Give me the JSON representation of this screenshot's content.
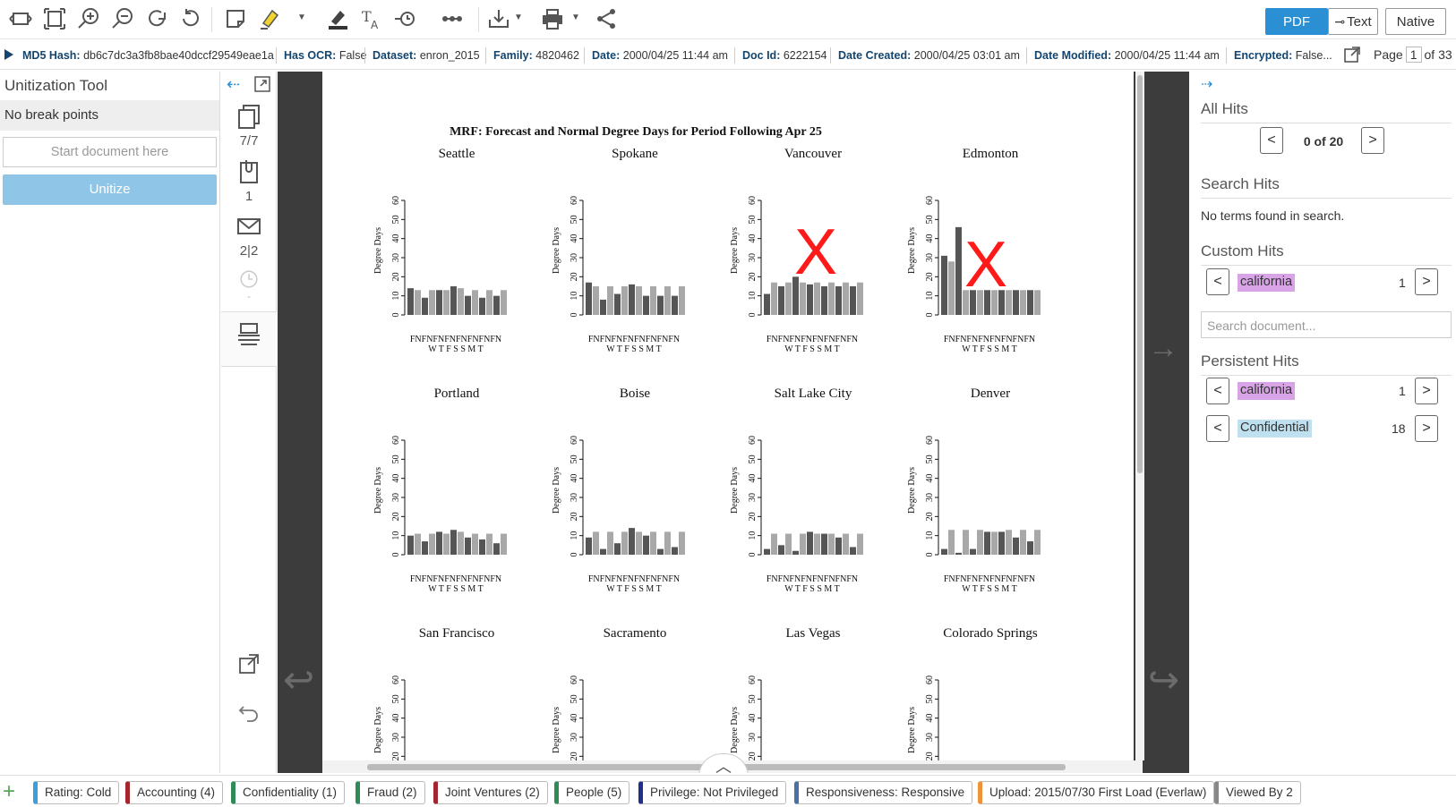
{
  "toolbar": {
    "icons": [
      "fit-width-icon",
      "fit-page-icon",
      "zoom-in-icon",
      "zoom-out-icon",
      "rotate-right-icon",
      "rotate-left-icon",
      "note-icon",
      "highlighter-icon",
      "redact-icon",
      "text-select-icon",
      "timeline-icon",
      "more-icon",
      "download-icon",
      "print-icon",
      "share-icon"
    ],
    "views": [
      "PDF",
      "Text",
      "Native"
    ]
  },
  "meta": {
    "items": [
      {
        "label": "MD5 Hash:",
        "value": "db6c7dc3a3fb8bae40dccf29549eae1a"
      },
      {
        "label": "Has OCR:",
        "value": "False"
      },
      {
        "label": "Dataset:",
        "value": "enron_2015"
      },
      {
        "label": "Family:",
        "value": "4820462"
      },
      {
        "label": "Date:",
        "value": "2000/04/25 11:44 am"
      },
      {
        "label": "Doc Id:",
        "value": "6222154"
      },
      {
        "label": "Date Created:",
        "value": "2000/04/25 03:01 am"
      },
      {
        "label": "Date Modified:",
        "value": "2000/04/25 11:44 am"
      },
      {
        "label": "Encrypted:",
        "value": "False..."
      }
    ],
    "page_label": "Page",
    "page_current": "1",
    "page_total": "of 33"
  },
  "left": {
    "title": "Unitization Tool",
    "breakpoints": "No break points",
    "start_placeholder": "Start document here",
    "unitize_label": "Unitize"
  },
  "strip": {
    "pages": "7/7",
    "attachments": "1",
    "family": "2|2",
    "history": "-"
  },
  "document": {
    "title": "MRF: Forecast and Normal Degree Days for Period Following Apr 25",
    "ylabel": "Degree Days",
    "yticks": [
      "0",
      "10",
      "20",
      "30",
      "40",
      "50",
      "60"
    ],
    "xtop": "FNFNFNFNFNFNFNFN",
    "xbottom": "W T F S S M T",
    "mark": "X"
  },
  "chart_data": [
    {
      "type": "bar",
      "title": "Seattle",
      "ylim": [
        0,
        60
      ],
      "values": [
        14,
        13,
        9,
        13,
        13,
        13,
        15,
        14,
        10,
        13,
        9,
        13,
        10,
        13
      ]
    },
    {
      "type": "bar",
      "title": "Spokane",
      "ylim": [
        0,
        60
      ],
      "values": [
        17,
        15,
        8,
        15,
        11,
        15,
        16,
        15,
        10,
        15,
        10,
        15,
        10,
        15
      ]
    },
    {
      "type": "bar",
      "title": "Vancouver",
      "ylim": [
        0,
        60
      ],
      "values": [
        11,
        17,
        15,
        17,
        20,
        17,
        16,
        17,
        15,
        17,
        15,
        17,
        15,
        17
      ]
    },
    {
      "type": "bar",
      "title": "Edmonton",
      "ylim": [
        0,
        60
      ],
      "values": [
        31,
        28,
        46,
        13,
        13,
        13,
        13,
        13,
        13,
        13,
        13,
        13,
        13,
        13
      ]
    },
    {
      "type": "bar",
      "title": "Portland",
      "ylim": [
        0,
        60
      ],
      "values": [
        10,
        11,
        7,
        11,
        12,
        11,
        13,
        12,
        9,
        11,
        8,
        11,
        6,
        11
      ]
    },
    {
      "type": "bar",
      "title": "Boise",
      "ylim": [
        0,
        60
      ],
      "values": [
        9,
        12,
        3,
        12,
        6,
        12,
        14,
        12,
        10,
        12,
        3,
        12,
        4,
        12
      ]
    },
    {
      "type": "bar",
      "title": "Salt Lake City",
      "ylim": [
        0,
        60
      ],
      "values": [
        3,
        11,
        5,
        11,
        2,
        11,
        12,
        11,
        11,
        11,
        9,
        11,
        4,
        11
      ]
    },
    {
      "type": "bar",
      "title": "Denver",
      "ylim": [
        0,
        60
      ],
      "values": [
        3,
        13,
        1,
        13,
        3,
        13,
        12,
        12,
        12,
        13,
        9,
        13,
        7,
        13
      ]
    },
    {
      "type": "bar",
      "title": "San Francisco",
      "ylim": [
        0,
        60
      ],
      "values": []
    },
    {
      "type": "bar",
      "title": "Sacramento",
      "ylim": [
        0,
        60
      ],
      "values": []
    },
    {
      "type": "bar",
      "title": "Las Vegas",
      "ylim": [
        0,
        60
      ],
      "values": []
    },
    {
      "type": "bar",
      "title": "Colorado Springs",
      "ylim": [
        0,
        60
      ],
      "values": []
    }
  ],
  "right": {
    "all_hits_title": "All Hits",
    "all_hits_count": "0 of 20",
    "search_hits_title": "Search Hits",
    "search_hits_msg": "No terms found in search.",
    "custom_hits_title": "Custom Hits",
    "custom_hits": [
      {
        "term": "california",
        "count": "1",
        "color": "#d9a3e8"
      }
    ],
    "search_placeholder": "Search document...",
    "persistent_hits_title": "Persistent Hits",
    "persistent_hits": [
      {
        "term": "california",
        "count": "1",
        "color": "#d9a3e8"
      },
      {
        "term": "Confidential",
        "count": "18",
        "color": "#bfe0ee"
      }
    ]
  },
  "tags": [
    {
      "label": "Rating: Cold",
      "color": "#3aa0dc"
    },
    {
      "label": "Accounting (4)",
      "color": "#a3252e"
    },
    {
      "label": "Confidentiality (1)",
      "color": "#2e8b57"
    },
    {
      "label": "Fraud (2)",
      "color": "#2e8b57"
    },
    {
      "label": "Joint Ventures (2)",
      "color": "#a3252e"
    },
    {
      "label": "People (5)",
      "color": "#2e8b57"
    },
    {
      "label": "Privilege: Not Privileged",
      "color": "#1f2f8a"
    },
    {
      "label": "Responsiveness: Responsive",
      "color": "#4a6fa5"
    },
    {
      "label": "Upload: 2015/07/30 First Load (Everlaw)",
      "color": "#f0923a"
    },
    {
      "label": "Viewed By 2",
      "color": "#888888"
    }
  ]
}
